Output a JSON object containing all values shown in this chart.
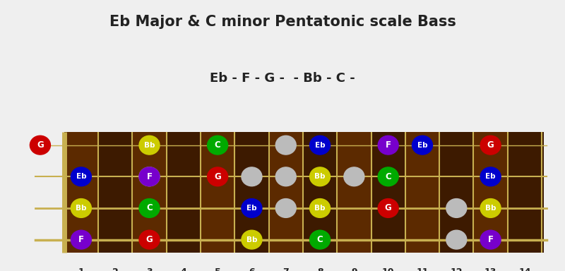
{
  "title": "Eb Major & C minor Pentatonic scale Bass",
  "subtitle": "Eb - F - G -  - Bb - C -",
  "frets": 14,
  "strings": 4,
  "fretboard_color": "#5C2A00",
  "fretboard_dark": "#3D1A00",
  "string_color": "#C8B050",
  "fret_color": "#C8B050",
  "nut_color": "#C8B050",
  "background_color": "#EFEFEF",
  "note_colors": {
    "G": "#CC0000",
    "F": "#7700CC",
    "Eb": "#0000CC",
    "Bb": "#CCCC00",
    "C": "#00AA00"
  },
  "ghost_color": "#BBBBBB",
  "notes": [
    {
      "string": 4,
      "fret": 0,
      "note": "G"
    },
    {
      "string": 3,
      "fret": 1,
      "note": "Eb"
    },
    {
      "string": 2,
      "fret": 1,
      "note": "Bb"
    },
    {
      "string": 1,
      "fret": 1,
      "note": "F"
    },
    {
      "string": 4,
      "fret": 3,
      "note": "Bb"
    },
    {
      "string": 3,
      "fret": 3,
      "note": "F"
    },
    {
      "string": 2,
      "fret": 3,
      "note": "C"
    },
    {
      "string": 1,
      "fret": 3,
      "note": "G"
    },
    {
      "string": 4,
      "fret": 5,
      "note": "C"
    },
    {
      "string": 3,
      "fret": 5,
      "note": "G"
    },
    {
      "string": 2,
      "fret": 6,
      "note": "Eb"
    },
    {
      "string": 1,
      "fret": 6,
      "note": "Bb"
    },
    {
      "string": 4,
      "fret": 8,
      "note": "Eb"
    },
    {
      "string": 3,
      "fret": 8,
      "note": "Bb"
    },
    {
      "string": 2,
      "fret": 8,
      "note": "Bb"
    },
    {
      "string": 1,
      "fret": 8,
      "note": "C"
    },
    {
      "string": 4,
      "fret": 10,
      "note": "F"
    },
    {
      "string": 3,
      "fret": 10,
      "note": "C"
    },
    {
      "string": 2,
      "fret": 10,
      "note": "G"
    },
    {
      "string": 4,
      "fret": 11,
      "note": "Eb"
    },
    {
      "string": 4,
      "fret": 13,
      "note": "G"
    },
    {
      "string": 3,
      "fret": 13,
      "note": "Eb"
    },
    {
      "string": 2,
      "fret": 13,
      "note": "Bb"
    },
    {
      "string": 1,
      "fret": 13,
      "note": "F"
    }
  ],
  "ghost_notes": [
    {
      "string": 3,
      "fret": 3
    },
    {
      "string": 3,
      "fret": 6
    },
    {
      "string": 2,
      "fret": 7
    },
    {
      "string": 3,
      "fret": 7
    },
    {
      "string": 4,
      "fret": 7
    },
    {
      "string": 3,
      "fret": 9
    },
    {
      "string": 2,
      "fret": 12
    },
    {
      "string": 1,
      "fret": 12
    }
  ]
}
